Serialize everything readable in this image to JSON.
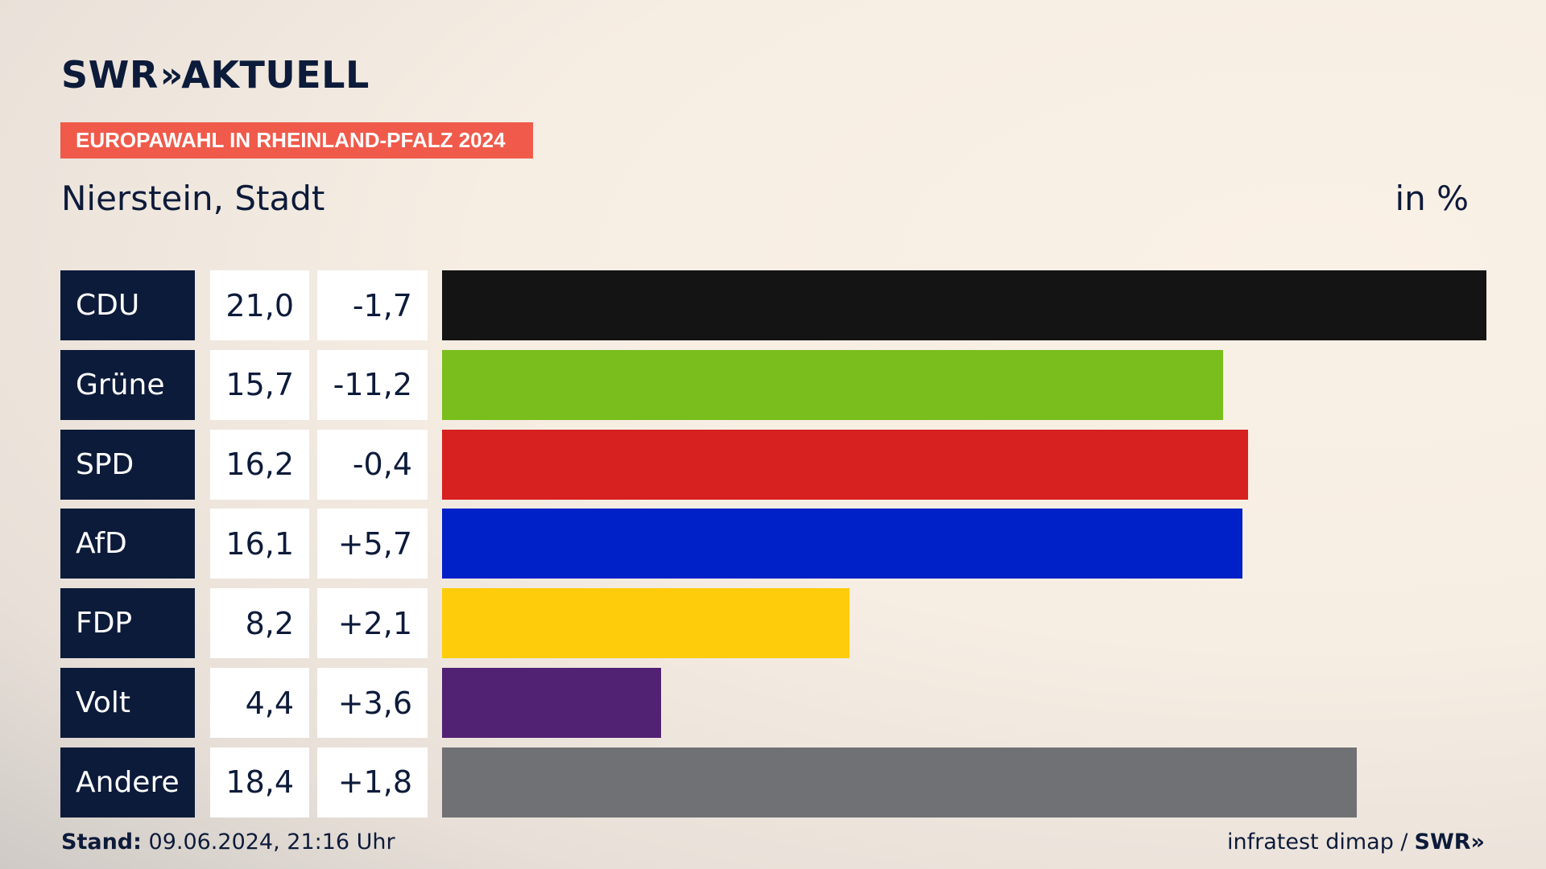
{
  "brand": {
    "name_left": "SWR",
    "chevrons": "»",
    "name_right": "AKTUELL"
  },
  "badge": "EUROPAWAHL IN RHEINLAND-PFALZ 2024",
  "region": "Nierstein, Stadt",
  "unit": "in %",
  "chart_data": {
    "type": "bar",
    "orientation": "horizontal",
    "title": "",
    "categories": [
      "CDU",
      "Grüne",
      "SPD",
      "AfD",
      "FDP",
      "Volt",
      "Andere"
    ],
    "values": [
      21.0,
      15.7,
      16.2,
      16.1,
      8.2,
      4.4,
      18.4
    ],
    "values_label": [
      "21,0",
      "15,7",
      "16,2",
      "16,1",
      "8,2",
      "4,4",
      "18,4"
    ],
    "diff_label": [
      "-1,7",
      "-11,2",
      "-0,4",
      "+5,7",
      "+2,1",
      "+3,6",
      "+1,8"
    ],
    "colors": [
      "#141414",
      "#7abe1e",
      "#d72020",
      "#0020c8",
      "#fecc0a",
      "#512174",
      "#707174"
    ],
    "xlim": [
      0,
      21.0
    ],
    "grid": false,
    "legend": "none"
  },
  "footer": {
    "stand_label": "Stand:",
    "stand_value": "09.06.2024, 21:16 Uhr",
    "source": "infratest dimap /",
    "source_brand": "SWR»"
  }
}
